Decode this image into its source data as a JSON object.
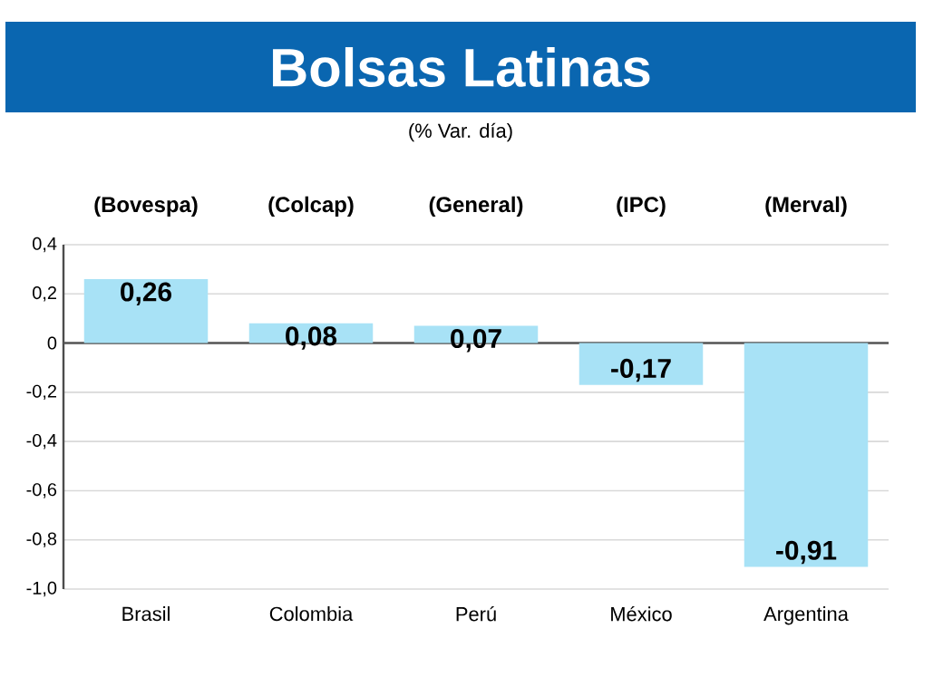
{
  "chart_data": {
    "type": "bar",
    "title": "Bolsas Latinas",
    "subtitle": "(% Var. día)",
    "categories": [
      "Brasil",
      "Colombia",
      "Perú",
      "México",
      "Argentina"
    ],
    "values": [
      0.26,
      0.08,
      0.07,
      -0.17,
      -0.91
    ],
    "value_labels": [
      "0,26",
      "0,08",
      "0,07",
      "-0,17",
      "-0,91"
    ],
    "color": "#a8e2f6",
    "ylim": [
      -1.0,
      0.4
    ],
    "yticks": [
      {
        "value": 0.4,
        "label": "0,4"
      },
      {
        "value": 0.2,
        "label": "0,2"
      },
      {
        "value": 0,
        "label": "0"
      },
      {
        "value": -0.2,
        "label": "-0,2"
      },
      {
        "value": -0.4,
        "label": "-0,4"
      },
      {
        "value": -0.6,
        "label": "-0,6"
      },
      {
        "value": -0.8,
        "label": "-0,8"
      },
      {
        "value": -1.0,
        "label": "-1,0"
      }
    ],
    "grid": "y",
    "ref_lines": [
      {
        "axis": "y",
        "value": 0,
        "color": "#555555"
      }
    ],
    "annotations": [
      "(Bovespa)",
      "(Colcap)",
      "(General)",
      "(IPC)",
      "(Merval)"
    ]
  }
}
